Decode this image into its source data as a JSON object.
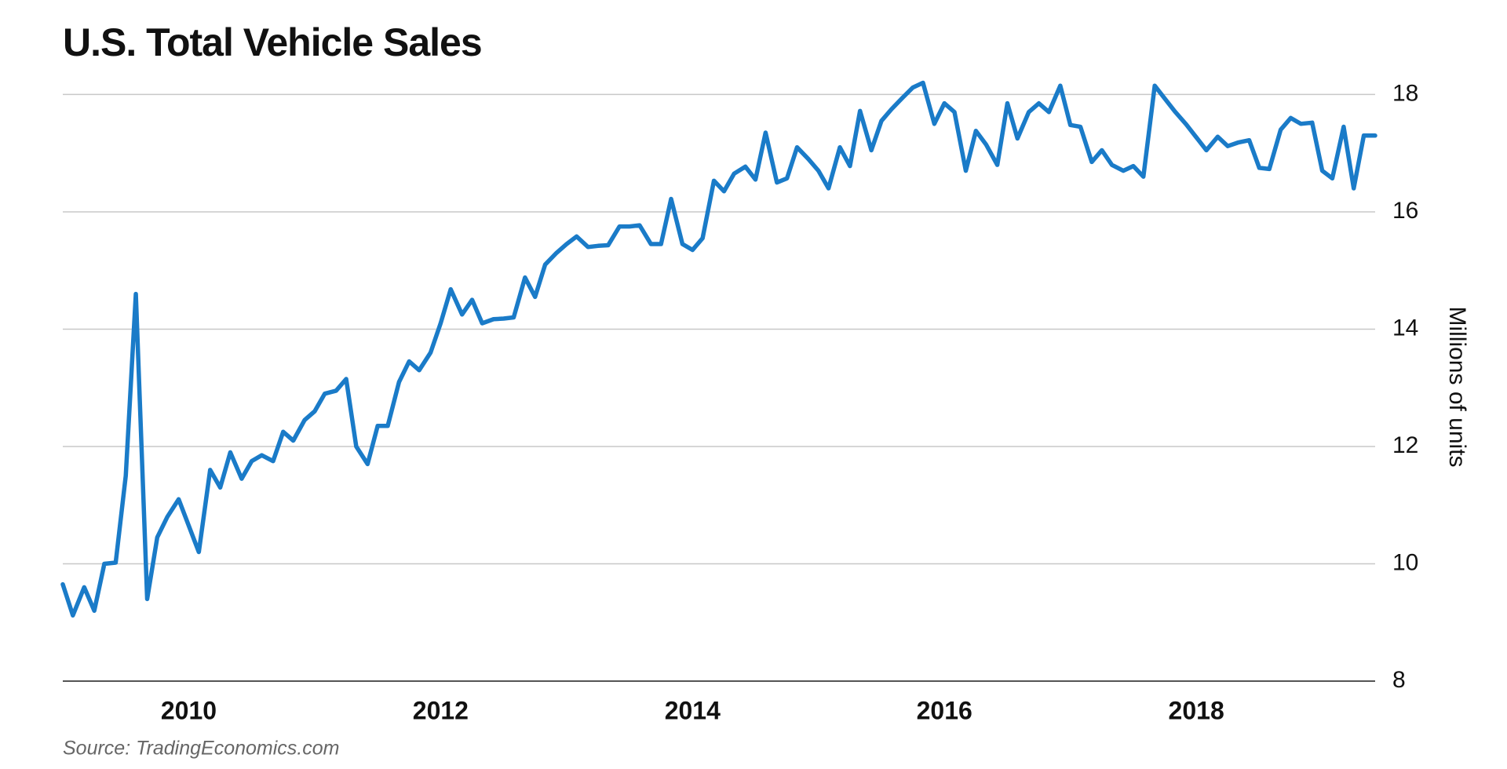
{
  "chart_data": {
    "type": "line",
    "title": "U.S. Total Vehicle Sales",
    "y_label": "Millions of units",
    "source": "Source: TradingEconomics.com",
    "color": "#1a7bc8",
    "grid": true,
    "xlim": [
      2009,
      2019.42
    ],
    "ylim": [
      8,
      18.3
    ],
    "xticks": [
      2010,
      2012,
      2014,
      2016,
      2018
    ],
    "yticks": [
      8,
      10,
      12,
      14,
      16,
      18
    ],
    "x": [
      2009.0,
      2009.08,
      2009.17,
      2009.25,
      2009.33,
      2009.42,
      2009.5,
      2009.58,
      2009.67,
      2009.75,
      2009.83,
      2009.92,
      2010.0,
      2010.08,
      2010.17,
      2010.25,
      2010.33,
      2010.42,
      2010.5,
      2010.58,
      2010.67,
      2010.75,
      2010.83,
      2010.92,
      2011.0,
      2011.08,
      2011.17,
      2011.25,
      2011.33,
      2011.42,
      2011.5,
      2011.58,
      2011.67,
      2011.75,
      2011.83,
      2011.92,
      2012.0,
      2012.08,
      2012.17,
      2012.25,
      2012.33,
      2012.42,
      2012.5,
      2012.58,
      2012.67,
      2012.75,
      2012.83,
      2012.92,
      2013.0,
      2013.08,
      2013.17,
      2013.25,
      2013.33,
      2013.42,
      2013.5,
      2013.58,
      2013.67,
      2013.75,
      2013.83,
      2013.92,
      2014.0,
      2014.08,
      2014.17,
      2014.25,
      2014.33,
      2014.42,
      2014.5,
      2014.58,
      2014.67,
      2014.75,
      2014.83,
      2014.92,
      2015.0,
      2015.08,
      2015.17,
      2015.25,
      2015.33,
      2015.42,
      2015.5,
      2015.58,
      2015.67,
      2015.75,
      2015.83,
      2015.92,
      2016.0,
      2016.08,
      2016.17,
      2016.25,
      2016.33,
      2016.42,
      2016.5,
      2016.58,
      2016.67,
      2016.75,
      2016.83,
      2016.92,
      2017.0,
      2017.08,
      2017.17,
      2017.25,
      2017.33,
      2017.42,
      2017.5,
      2017.58,
      2017.67,
      2017.75,
      2017.83,
      2017.92,
      2018.0,
      2018.08,
      2018.17,
      2018.25,
      2018.33,
      2018.42,
      2018.5,
      2018.58,
      2018.67,
      2018.75,
      2018.83,
      2018.92,
      2019.0,
      2019.08,
      2019.17,
      2019.25,
      2019.33,
      2019.42
    ],
    "values": [
      9.65,
      9.12,
      9.6,
      9.2,
      10.0,
      10.02,
      11.5,
      14.6,
      9.4,
      10.45,
      10.8,
      11.1,
      10.65,
      10.2,
      11.6,
      11.3,
      11.9,
      11.45,
      11.75,
      11.85,
      11.75,
      12.25,
      12.1,
      12.45,
      12.6,
      12.9,
      12.95,
      13.15,
      12.0,
      11.7,
      12.35,
      12.35,
      13.1,
      13.45,
      13.3,
      13.6,
      14.1,
      14.68,
      14.25,
      14.5,
      14.1,
      14.17,
      14.18,
      14.2,
      14.88,
      14.55,
      15.1,
      15.3,
      15.45,
      15.58,
      15.4,
      15.42,
      15.43,
      15.75,
      15.75,
      15.77,
      15.45,
      15.45,
      16.22,
      15.45,
      15.35,
      15.55,
      16.53,
      16.35,
      16.65,
      16.77,
      16.55,
      17.35,
      16.5,
      16.57,
      17.1,
      16.9,
      16.7,
      16.4,
      17.1,
      16.78,
      17.72,
      17.05,
      17.55,
      17.75,
      17.95,
      18.12,
      18.2,
      17.5,
      17.85,
      17.7,
      16.7,
      17.38,
      17.15,
      16.8,
      17.85,
      17.25,
      17.7,
      17.85,
      17.7,
      18.15,
      17.48,
      17.45,
      16.85,
      17.05,
      16.8,
      16.7,
      16.78,
      16.6,
      18.15,
      17.93,
      17.71,
      17.49,
      17.27,
      17.05,
      17.28,
      17.12,
      17.18,
      17.22,
      16.75,
      16.73,
      17.4,
      17.6,
      17.5,
      17.52,
      16.7,
      16.57,
      17.45,
      16.4,
      17.3,
      17.3
    ]
  }
}
